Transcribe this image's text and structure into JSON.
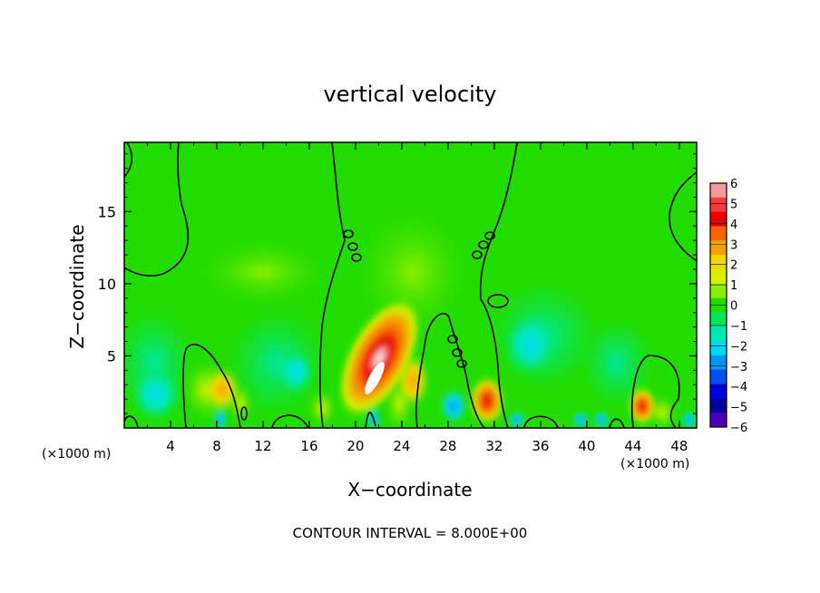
{
  "chart_data": {
    "type": "heatmap",
    "title": "vertical velocity",
    "xlabel": "X−coordinate",
    "ylabel": "Z−coordinate",
    "x_unit_label": "(×1000 m)",
    "xlim": [
      0,
      49.5
    ],
    "ylim": [
      0,
      19.8
    ],
    "x_ticks": [
      4,
      8,
      12,
      16,
      20,
      24,
      28,
      32,
      36,
      40,
      44,
      48
    ],
    "y_ticks": [
      5,
      10,
      15
    ],
    "footer": "CONTOUR INTERVAL =  8.000E+00",
    "colorbar": {
      "ticks": [
        6,
        5,
        4,
        3,
        2,
        1,
        0,
        -1,
        -2,
        -3,
        -4,
        -5,
        -6
      ],
      "colors": [
        "#f49a9a",
        "#f53b3b",
        "#e80000",
        "#f56500",
        "#f5a300",
        "#f2d800",
        "#d6f200",
        "#8cf000",
        "#22dc00",
        "#00e85a",
        "#00e8b4",
        "#00d8f5",
        "#0096f0",
        "#0050f0",
        "#0000e6",
        "#0000a8",
        "#5000b4"
      ]
    },
    "features": [
      {
        "type": "updraft",
        "x": 22.3,
        "z": 3.9,
        "peak": 6
      },
      {
        "type": "updraft",
        "x": 31.4,
        "z": 1.9,
        "peak": 4
      },
      {
        "type": "updraft",
        "x": 45.2,
        "z": 1.6,
        "peak": 4
      },
      {
        "type": "updraft",
        "x": 8.2,
        "z": 2.5,
        "peak": 2
      },
      {
        "type": "downdraft",
        "x": 29.5,
        "z": 1.4,
        "peak": -2
      },
      {
        "type": "downdraft",
        "x": 15.0,
        "z": 4.5,
        "peak": -1
      }
    ]
  }
}
